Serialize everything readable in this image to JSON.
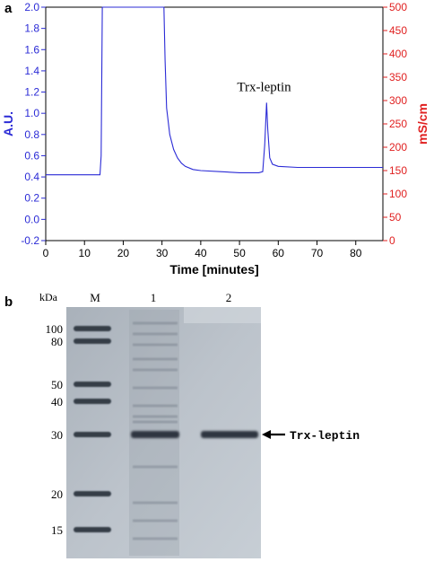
{
  "panels": {
    "a_label": "a",
    "b_label": "b"
  },
  "chart_data": [
    {
      "type": "line",
      "panel": "a",
      "xlabel": "Time [minutes]",
      "ylabel": "A.U.",
      "y2label": "mS/cm",
      "xlim": [
        0,
        87
      ],
      "ylim": [
        -0.2,
        2.0
      ],
      "y2lim": [
        0,
        500
      ],
      "x_ticks": [
        "0",
        "10",
        "20",
        "30",
        "40",
        "50",
        "60",
        "70",
        "80"
      ],
      "y_ticks": [
        "-0.2",
        "0.0",
        "0.2",
        "0.4",
        "0.6",
        "0.8",
        "1.0",
        "1.2",
        "1.4",
        "1.6",
        "1.8",
        "2.0"
      ],
      "y2_ticks": [
        "0",
        "50",
        "100",
        "150",
        "200",
        "250",
        "300",
        "350",
        "400",
        "450",
        "500"
      ],
      "grid": false,
      "annotations": [
        {
          "text": "Trx-leptin",
          "x": 57,
          "y": 1.1
        }
      ],
      "colors": {
        "line": "#2b2bd6",
        "left_axis": "#2b2bd6",
        "right_axis": "#e02020"
      },
      "series": [
        {
          "x": [
            0,
            14,
            14.3,
            14.6,
            30.5,
            30.8,
            31.2,
            32,
            33,
            34,
            35,
            36,
            38,
            40,
            45,
            50,
            55,
            56,
            56.5,
            57,
            57.3,
            57.8,
            58.5,
            60,
            65,
            70,
            80,
            87
          ],
          "values": [
            0.42,
            0.42,
            0.6,
            2.0,
            2.0,
            1.5,
            1.05,
            0.8,
            0.66,
            0.58,
            0.53,
            0.5,
            0.47,
            0.46,
            0.45,
            0.44,
            0.44,
            0.45,
            0.7,
            1.1,
            0.85,
            0.58,
            0.52,
            0.5,
            0.49,
            0.49,
            0.49,
            0.49
          ]
        }
      ]
    },
    {
      "type": "gel",
      "panel": "b",
      "unit_label": "kDa",
      "lanes": [
        "M",
        "1",
        "2"
      ],
      "marker_sizes": [
        "100",
        "80",
        "50",
        "40",
        "30",
        "20",
        "15"
      ],
      "band_label": "Trx-leptin",
      "band_size": "30",
      "colors": {
        "background": "#b8c0c8",
        "band": "#2e3540"
      }
    }
  ]
}
